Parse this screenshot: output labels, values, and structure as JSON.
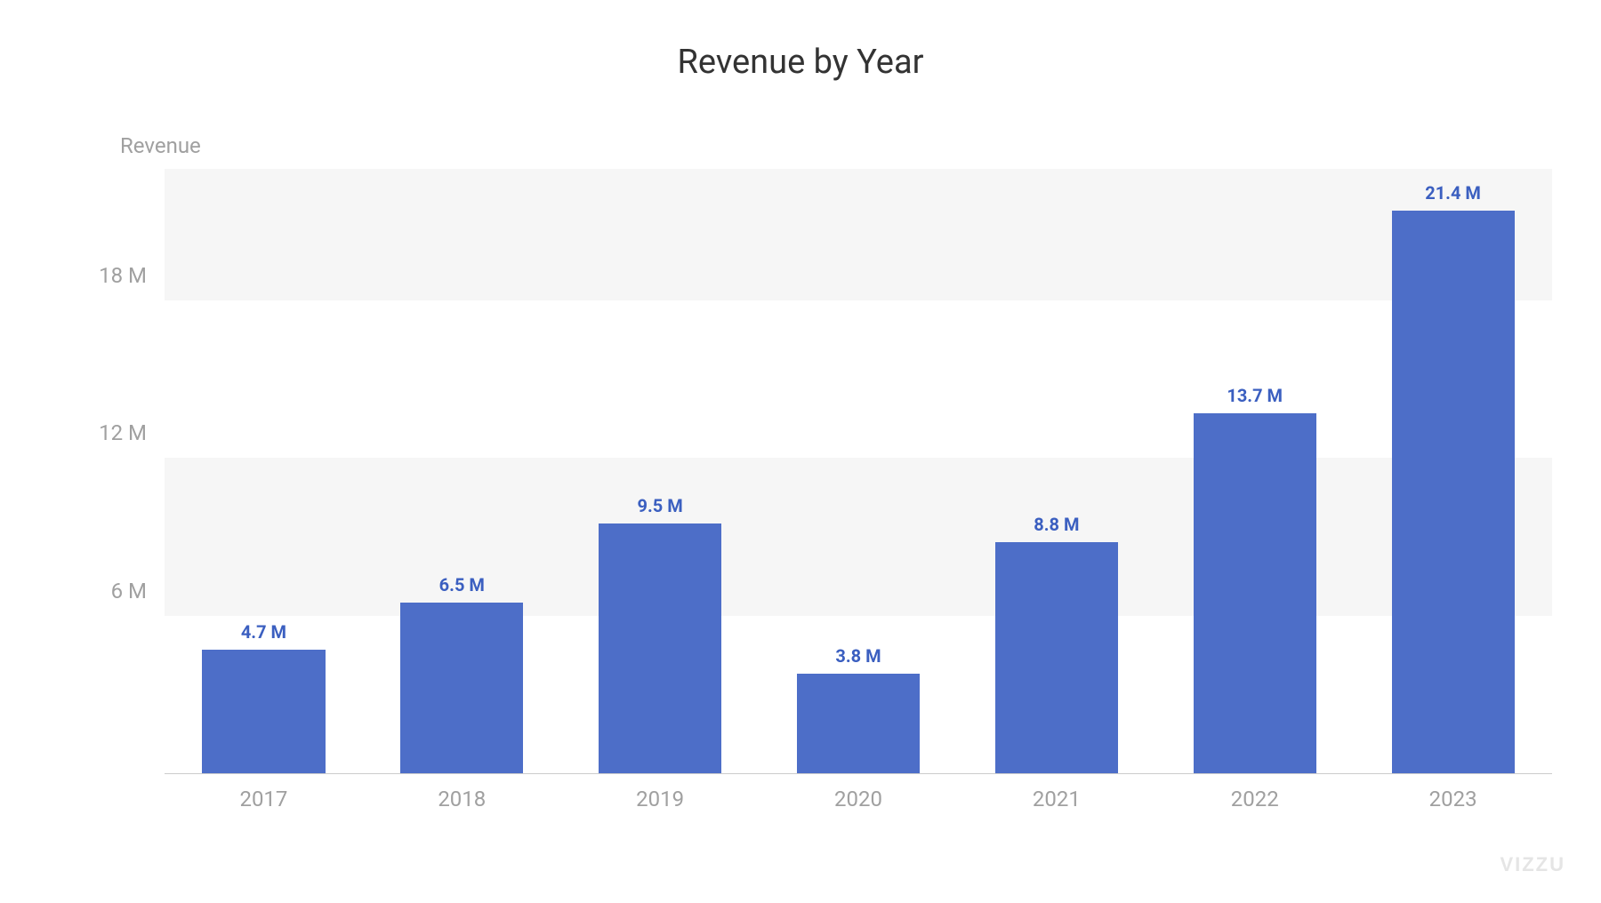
{
  "chart": {
    "type": "bar",
    "title": "Revenue by Year",
    "title_fontsize": 38,
    "title_color": "#333333",
    "y_axis_label": "Revenue",
    "y_axis_label_fontsize": 24,
    "y_axis_label_color": "#a0a0a0",
    "categories": [
      "2017",
      "2018",
      "2019",
      "2020",
      "2021",
      "2022",
      "2023"
    ],
    "values": [
      4.7,
      6.5,
      9.5,
      3.8,
      8.8,
      13.7,
      21.4
    ],
    "value_labels": [
      "4.7 M",
      "6.5 M",
      "9.5 M",
      "3.8 M",
      "8.8 M",
      "13.7 M",
      "21.4 M"
    ],
    "value_label_fontsize": 20,
    "value_label_fontweight": 700,
    "value_label_color": "#3b5fc0",
    "bar_color": "#4d6ec8",
    "bar_width": 0.62,
    "background_color": "#ffffff",
    "grid_band_color": "#f6f6f6",
    "axis_line_color": "#cccccc",
    "x_tick_fontsize": 24,
    "x_tick_color": "#a0a0a0",
    "y_tick_fontsize": 24,
    "y_tick_color": "#a0a0a0",
    "y_ticks": [
      6,
      12,
      18
    ],
    "y_tick_labels": [
      "6 M",
      "12 M",
      "18 M"
    ],
    "ylim": [
      0,
      23
    ],
    "watermark": "VIZZU",
    "watermark_color": "#e5e5e5"
  }
}
